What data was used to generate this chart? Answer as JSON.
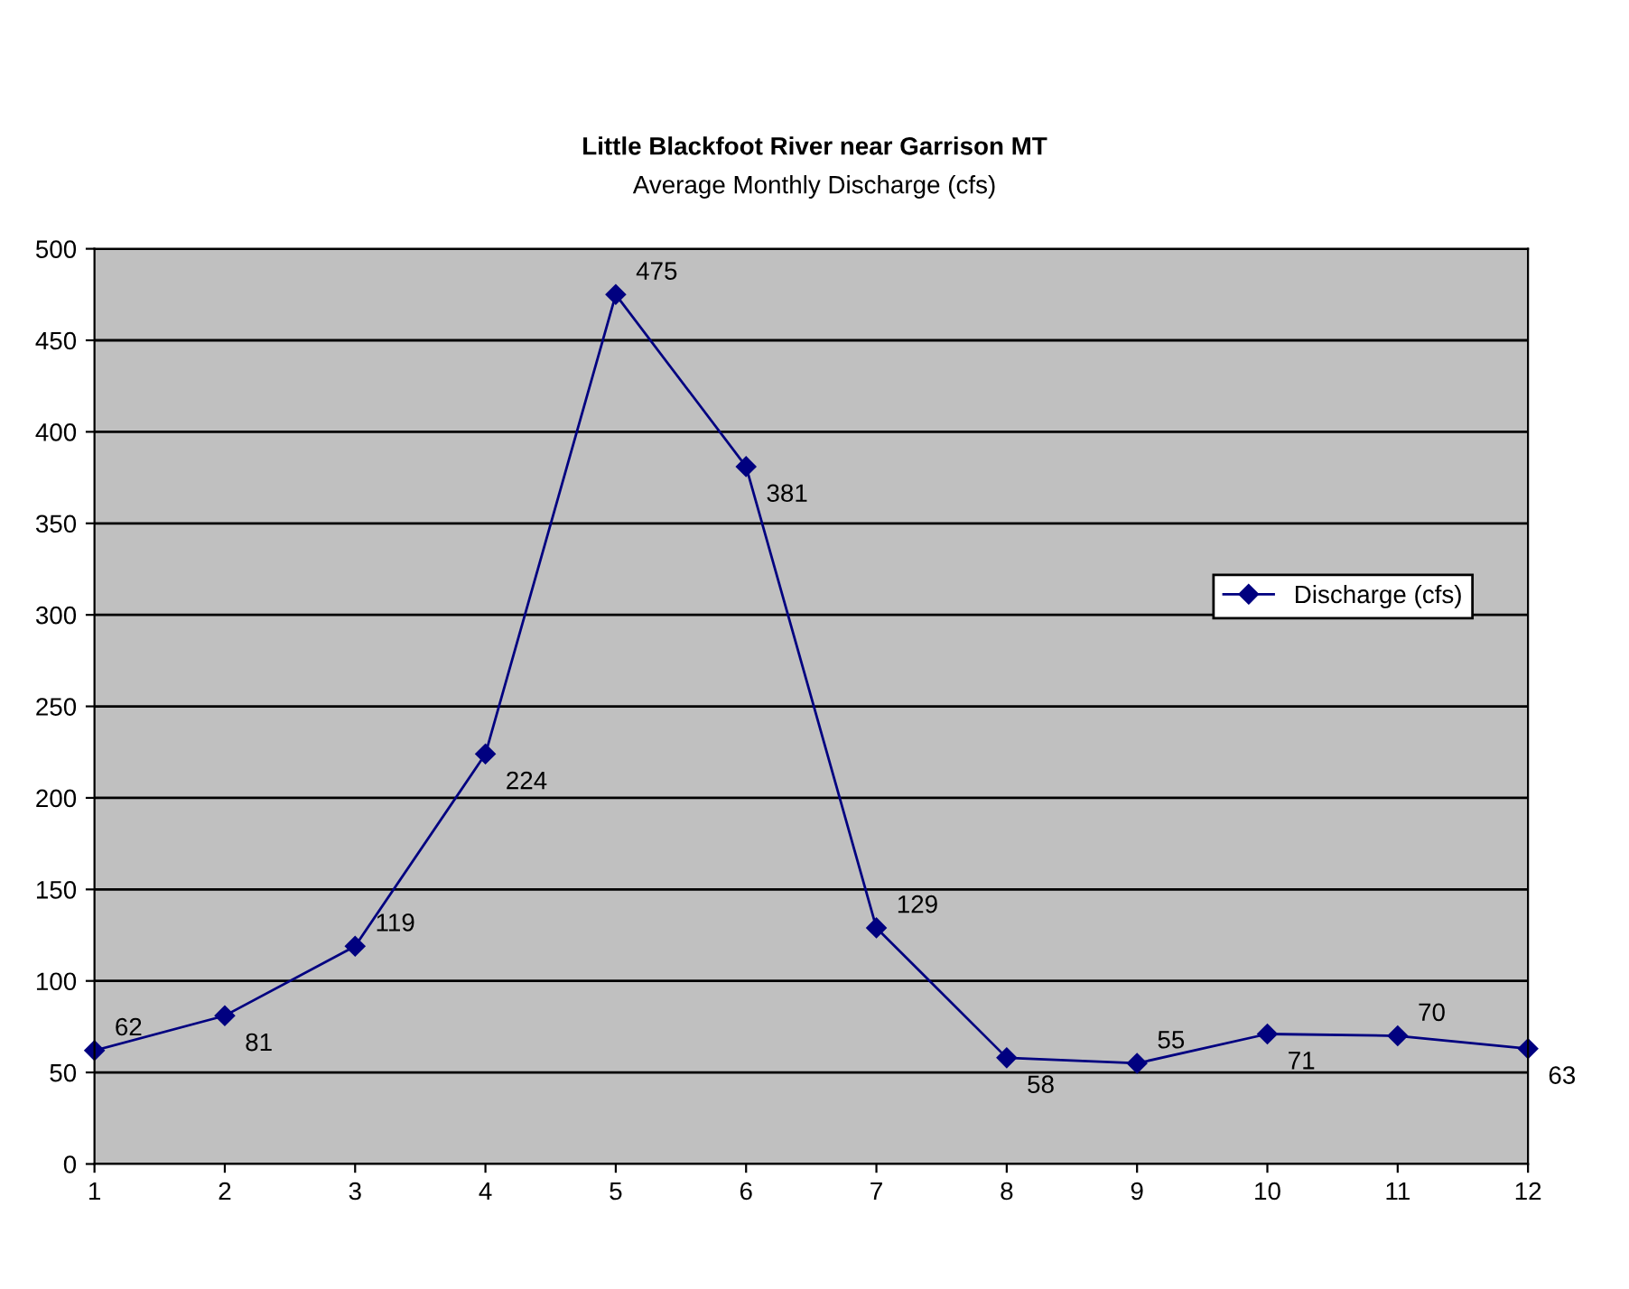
{
  "chart_data": {
    "type": "line",
    "title": "Little Blackfoot River near Garrison MT",
    "subtitle": "Average Monthly Discharge (cfs)",
    "x": [
      1,
      2,
      3,
      4,
      5,
      6,
      7,
      8,
      9,
      10,
      11,
      12
    ],
    "series": [
      {
        "name": "Discharge (cfs)",
        "color": "#000080",
        "values": [
          62,
          81,
          119,
          224,
          475,
          381,
          129,
          58,
          55,
          71,
          70,
          63
        ]
      }
    ],
    "xlim": [
      1,
      12
    ],
    "xticks": [
      1,
      2,
      3,
      4,
      5,
      6,
      7,
      8,
      9,
      10,
      11,
      12
    ],
    "ylim": [
      0,
      500
    ],
    "yticks": [
      0,
      50,
      100,
      150,
      200,
      250,
      300,
      350,
      400,
      450,
      500
    ],
    "grid": "y",
    "legend": "right",
    "marker": "diamond",
    "line_style": "solid",
    "data_labels": true
  }
}
